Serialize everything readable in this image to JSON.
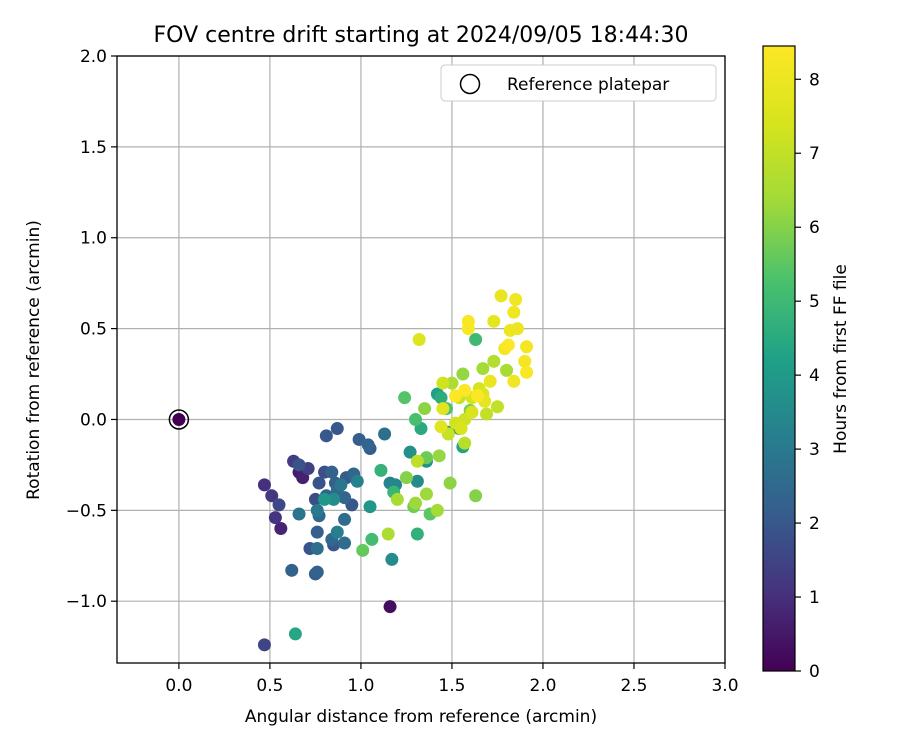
{
  "chart_data": {
    "type": "scatter",
    "title": "FOV centre drift starting at 2024/09/05 18:44:30",
    "xlabel": "Angular distance from reference (arcmin)",
    "ylabel": "Rotation from reference (arcmin)",
    "xlim": [
      -0.34,
      3.0
    ],
    "ylim": [
      -1.34,
      2.0
    ],
    "x_ticks": [
      "0.0",
      "0.5",
      "1.0",
      "1.5",
      "2.0",
      "2.5",
      "3.0"
    ],
    "y_ticks": [
      "−1.0",
      "−0.5",
      "0.0",
      "0.5",
      "1.0",
      "1.5",
      "2.0"
    ],
    "grid": true,
    "legend": {
      "location": "upper right",
      "entries": [
        "Reference platepar"
      ]
    },
    "colorbar": {
      "label": "Hours from first FF file",
      "range": [
        0,
        8.45
      ],
      "ticks": [
        "0",
        "1",
        "2",
        "3",
        "4",
        "5",
        "6",
        "7",
        "8"
      ],
      "colormap": "viridis"
    },
    "reference_point": {
      "x": 0.0,
      "y": 0.0,
      "hours": 0.0
    },
    "points": [
      {
        "x": 1.16,
        "y": -1.03,
        "h": 0.3
      },
      {
        "x": 0.66,
        "y": -0.29,
        "h": 0.6
      },
      {
        "x": 0.68,
        "y": -0.32,
        "h": 0.7
      },
      {
        "x": 0.56,
        "y": -0.6,
        "h": 0.8
      },
      {
        "x": 0.47,
        "y": -0.36,
        "h": 1.0
      },
      {
        "x": 0.53,
        "y": -0.54,
        "h": 1.1
      },
      {
        "x": 0.51,
        "y": -0.42,
        "h": 1.2
      },
      {
        "x": 0.63,
        "y": -0.23,
        "h": 1.3
      },
      {
        "x": 0.71,
        "y": -0.27,
        "h": 1.4
      },
      {
        "x": 0.47,
        "y": -1.24,
        "h": 1.5
      },
      {
        "x": 0.55,
        "y": -0.47,
        "h": 1.6
      },
      {
        "x": 0.75,
        "y": -0.44,
        "h": 1.7
      },
      {
        "x": 0.8,
        "y": -0.29,
        "h": 1.8
      },
      {
        "x": 0.77,
        "y": -0.35,
        "h": 1.9
      },
      {
        "x": 0.66,
        "y": -0.25,
        "h": 1.9
      },
      {
        "x": 0.72,
        "y": -0.71,
        "h": 1.9
      },
      {
        "x": 0.87,
        "y": -0.05,
        "h": 2.0
      },
      {
        "x": 0.81,
        "y": -0.09,
        "h": 2.0
      },
      {
        "x": 0.85,
        "y": -0.69,
        "h": 2.0
      },
      {
        "x": 0.95,
        "y": -0.47,
        "h": 2.0
      },
      {
        "x": 1.05,
        "y": -0.16,
        "h": 2.1
      },
      {
        "x": 0.75,
        "y": -0.85,
        "h": 2.1
      },
      {
        "x": 0.92,
        "y": -0.32,
        "h": 2.1
      },
      {
        "x": 0.86,
        "y": -0.35,
        "h": 2.2
      },
      {
        "x": 0.99,
        "y": -0.11,
        "h": 2.2
      },
      {
        "x": 0.76,
        "y": -0.62,
        "h": 2.2
      },
      {
        "x": 0.84,
        "y": -0.29,
        "h": 2.3
      },
      {
        "x": 0.81,
        "y": -0.42,
        "h": 2.3
      },
      {
        "x": 0.76,
        "y": -0.84,
        "h": 2.3
      },
      {
        "x": 0.62,
        "y": -0.83,
        "h": 2.3
      },
      {
        "x": 0.91,
        "y": -0.43,
        "h": 2.4
      },
      {
        "x": 0.96,
        "y": -0.3,
        "h": 2.4
      },
      {
        "x": 1.04,
        "y": -0.14,
        "h": 2.4
      },
      {
        "x": 0.87,
        "y": -0.39,
        "h": 2.5
      },
      {
        "x": 0.77,
        "y": -0.53,
        "h": 2.5
      },
      {
        "x": 0.84,
        "y": -0.66,
        "h": 2.5
      },
      {
        "x": 0.91,
        "y": -0.68,
        "h": 2.6
      },
      {
        "x": 0.91,
        "y": -0.55,
        "h": 2.6
      },
      {
        "x": 1.13,
        "y": -0.08,
        "h": 2.7
      },
      {
        "x": 0.76,
        "y": -0.71,
        "h": 2.7
      },
      {
        "x": 0.66,
        "y": -0.52,
        "h": 2.8
      },
      {
        "x": 0.89,
        "y": -0.36,
        "h": 2.9
      },
      {
        "x": 0.76,
        "y": -0.5,
        "h": 3.0
      },
      {
        "x": 0.87,
        "y": -0.62,
        "h": 3.1
      },
      {
        "x": 0.98,
        "y": -0.34,
        "h": 3.2
      },
      {
        "x": 1.16,
        "y": -0.35,
        "h": 3.3
      },
      {
        "x": 1.19,
        "y": -0.36,
        "h": 3.4
      },
      {
        "x": 1.31,
        "y": -0.34,
        "h": 3.5
      },
      {
        "x": 1.17,
        "y": -0.77,
        "h": 3.6
      },
      {
        "x": 0.85,
        "y": -0.44,
        "h": 3.6
      },
      {
        "x": 1.27,
        "y": -0.18,
        "h": 3.7
      },
      {
        "x": 1.36,
        "y": -0.23,
        "h": 3.8
      },
      {
        "x": 1.05,
        "y": -0.48,
        "h": 3.9
      },
      {
        "x": 0.8,
        "y": -0.44,
        "h": 3.9
      },
      {
        "x": 1.54,
        "y": -0.05,
        "h": 4.0
      },
      {
        "x": 1.48,
        "y": -0.07,
        "h": 4.1
      },
      {
        "x": 1.42,
        "y": 0.14,
        "h": 4.2
      },
      {
        "x": 1.56,
        "y": -0.15,
        "h": 4.3
      },
      {
        "x": 0.64,
        "y": -1.18,
        "h": 4.4
      },
      {
        "x": 1.33,
        "y": -0.05,
        "h": 4.5
      },
      {
        "x": 1.44,
        "y": 0.12,
        "h": 4.6
      },
      {
        "x": 1.31,
        "y": -0.63,
        "h": 4.7
      },
      {
        "x": 1.11,
        "y": -0.28,
        "h": 4.8
      },
      {
        "x": 1.18,
        "y": -0.4,
        "h": 4.9
      },
      {
        "x": 1.63,
        "y": 0.44,
        "h": 5.0
      },
      {
        "x": 1.06,
        "y": -0.66,
        "h": 5.1
      },
      {
        "x": 1.3,
        "y": 0.0,
        "h": 5.2
      },
      {
        "x": 1.47,
        "y": 0.06,
        "h": 5.3
      },
      {
        "x": 1.24,
        "y": 0.12,
        "h": 5.4
      },
      {
        "x": 1.38,
        "y": -0.52,
        "h": 5.5
      },
      {
        "x": 1.01,
        "y": -0.72,
        "h": 5.6
      },
      {
        "x": 1.36,
        "y": -0.21,
        "h": 5.7
      },
      {
        "x": 1.29,
        "y": -0.48,
        "h": 5.8
      },
      {
        "x": 1.6,
        "y": 0.05,
        "h": 5.9
      },
      {
        "x": 1.25,
        "y": -0.32,
        "h": 6.0
      },
      {
        "x": 1.63,
        "y": -0.42,
        "h": 6.0
      },
      {
        "x": 1.35,
        "y": 0.06,
        "h": 6.1
      },
      {
        "x": 1.49,
        "y": -0.35,
        "h": 6.1
      },
      {
        "x": 1.43,
        "y": -0.2,
        "h": 6.2
      },
      {
        "x": 1.56,
        "y": 0.25,
        "h": 6.2
      },
      {
        "x": 1.36,
        "y": -0.41,
        "h": 6.3
      },
      {
        "x": 1.3,
        "y": -0.46,
        "h": 6.3
      },
      {
        "x": 1.67,
        "y": 0.28,
        "h": 6.4
      },
      {
        "x": 1.42,
        "y": -0.5,
        "h": 6.4
      },
      {
        "x": 1.8,
        "y": 0.27,
        "h": 6.5
      },
      {
        "x": 1.2,
        "y": -0.44,
        "h": 6.5
      },
      {
        "x": 1.5,
        "y": 0.2,
        "h": 6.6
      },
      {
        "x": 1.15,
        "y": -0.63,
        "h": 6.6
      },
      {
        "x": 1.73,
        "y": 0.32,
        "h": 6.7
      },
      {
        "x": 1.57,
        "y": -0.13,
        "h": 6.8
      },
      {
        "x": 1.31,
        "y": -0.23,
        "h": 6.9
      },
      {
        "x": 1.69,
        "y": 0.03,
        "h": 7.0
      },
      {
        "x": 1.75,
        "y": 0.07,
        "h": 7.0
      },
      {
        "x": 1.48,
        "y": -0.08,
        "h": 7.1
      },
      {
        "x": 1.54,
        "y": 0.12,
        "h": 7.1
      },
      {
        "x": 1.57,
        "y": 0.0,
        "h": 7.2
      },
      {
        "x": 1.52,
        "y": -0.02,
        "h": 7.3
      },
      {
        "x": 1.45,
        "y": 0.2,
        "h": 7.3
      },
      {
        "x": 1.65,
        "y": 0.17,
        "h": 7.4
      },
      {
        "x": 1.61,
        "y": 0.12,
        "h": 7.4
      },
      {
        "x": 1.61,
        "y": 0.04,
        "h": 7.5
      },
      {
        "x": 1.55,
        "y": -0.05,
        "h": 7.5
      },
      {
        "x": 1.67,
        "y": 0.14,
        "h": 7.6
      },
      {
        "x": 1.32,
        "y": 0.44,
        "h": 7.6
      },
      {
        "x": 1.44,
        "y": -0.04,
        "h": 7.7
      },
      {
        "x": 1.45,
        "y": 0.06,
        "h": 7.7
      },
      {
        "x": 1.73,
        "y": 0.54,
        "h": 7.8
      },
      {
        "x": 1.68,
        "y": 0.1,
        "h": 7.8
      },
      {
        "x": 1.71,
        "y": 0.21,
        "h": 7.9
      },
      {
        "x": 1.77,
        "y": 0.68,
        "h": 7.9
      },
      {
        "x": 1.82,
        "y": 0.49,
        "h": 8.0
      },
      {
        "x": 1.86,
        "y": 0.5,
        "h": 8.0
      },
      {
        "x": 1.85,
        "y": 0.66,
        "h": 8.1
      },
      {
        "x": 1.84,
        "y": 0.59,
        "h": 8.1
      },
      {
        "x": 1.84,
        "y": 0.21,
        "h": 8.1
      },
      {
        "x": 1.79,
        "y": 0.39,
        "h": 8.2
      },
      {
        "x": 1.91,
        "y": 0.4,
        "h": 8.2
      },
      {
        "x": 1.9,
        "y": 0.32,
        "h": 8.2
      },
      {
        "x": 1.59,
        "y": 0.54,
        "h": 8.3
      },
      {
        "x": 1.59,
        "y": 0.5,
        "h": 8.3
      },
      {
        "x": 1.91,
        "y": 0.26,
        "h": 8.3
      },
      {
        "x": 1.81,
        "y": 0.41,
        "h": 8.4
      },
      {
        "x": 1.64,
        "y": 0.13,
        "h": 8.4
      },
      {
        "x": 1.52,
        "y": 0.13,
        "h": 8.4
      },
      {
        "x": 1.57,
        "y": 0.16,
        "h": 8.4
      }
    ]
  }
}
